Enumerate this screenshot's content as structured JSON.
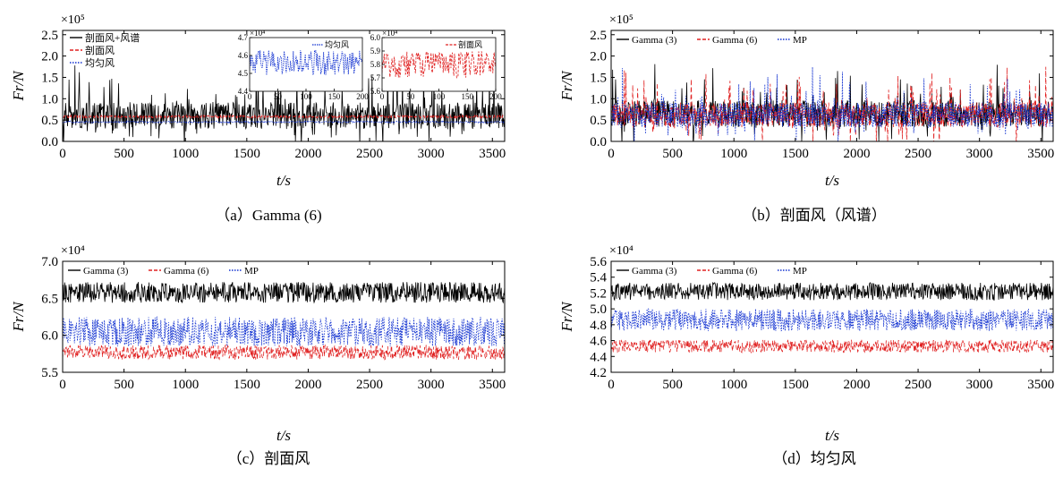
{
  "chart_data": [
    {
      "id": "a",
      "type": "line",
      "caption": "（a）Gamma (6)",
      "xlabel": "t/s",
      "ylabel": "Fr/N",
      "scale_label": "×10⁵",
      "xlim": [
        0,
        3600
      ],
      "ylim": [
        0,
        2.6
      ],
      "xticks": [
        0,
        500,
        1000,
        1500,
        2000,
        2500,
        3000,
        3500
      ],
      "yticks": [
        0,
        0.5,
        1.0,
        1.5,
        2.0,
        2.5
      ],
      "legend": [
        "剖面风+风谱",
        "剖面风",
        "均匀风"
      ],
      "legend_position": "top-left",
      "series": [
        {
          "name": "剖面风+风谱",
          "color": "#000000",
          "style": "solid",
          "mean": 0.6,
          "amplitude": 0.45,
          "noise": "spiky"
        },
        {
          "name": "剖面风",
          "color": "#e02020",
          "style": "dashed",
          "mean": 0.58,
          "amplitude": 0.03,
          "noise": "dense"
        },
        {
          "name": "均匀风",
          "color": "#1030d0",
          "style": "dotted",
          "mean": 0.456,
          "amplitude": 0.02,
          "noise": "dense"
        }
      ],
      "insets": [
        {
          "legend": "均匀风",
          "scale_label": "×10⁴",
          "color": "#1030d0",
          "xlim": [
            0,
            200
          ],
          "ylim": [
            4.4,
            4.7
          ],
          "xticks": [
            0,
            50,
            100,
            150,
            200
          ],
          "yticks": [
            4.4,
            4.5,
            4.6,
            4.7
          ],
          "mean": 4.56,
          "amplitude": 0.07
        },
        {
          "legend": "剖面风",
          "scale_label": "×10⁴",
          "color": "#e02020",
          "xlim": [
            0,
            200
          ],
          "ylim": [
            5.6,
            6.0
          ],
          "xticks": [
            0,
            50,
            100,
            150,
            200
          ],
          "yticks": [
            5.6,
            5.7,
            5.8,
            5.9,
            6.0
          ],
          "mean": 5.8,
          "amplitude": 0.1
        }
      ]
    },
    {
      "id": "b",
      "type": "line",
      "caption": "（b）剖面风（风谱）",
      "xlabel": "t/s",
      "ylabel": "Fr/N",
      "scale_label": "×10⁵",
      "xlim": [
        0,
        3600
      ],
      "ylim": [
        0,
        2.6
      ],
      "xticks": [
        0,
        500,
        1000,
        1500,
        2000,
        2500,
        3000,
        3500
      ],
      "yticks": [
        0,
        0.5,
        1.0,
        1.5,
        2.0,
        2.5
      ],
      "legend": [
        "Gamma (3)",
        "Gamma (6)",
        "MP"
      ],
      "legend_position": "top-left",
      "series": [
        {
          "name": "Gamma (3)",
          "color": "#000000",
          "style": "solid",
          "mean": 0.65,
          "amplitude": 0.45,
          "noise": "spiky"
        },
        {
          "name": "Gamma (6)",
          "color": "#e02020",
          "style": "dashed",
          "mean": 0.62,
          "amplitude": 0.42,
          "noise": "spiky"
        },
        {
          "name": "MP",
          "color": "#1030d0",
          "style": "dotted",
          "mean": 0.62,
          "amplitude": 0.42,
          "noise": "spiky"
        }
      ]
    },
    {
      "id": "c",
      "type": "line",
      "caption": "（c）剖面风",
      "xlabel": "t/s",
      "ylabel": "Fr/N",
      "scale_label": "×10⁴",
      "xlim": [
        0,
        3600
      ],
      "ylim": [
        5.5,
        7.0
      ],
      "xticks": [
        0,
        500,
        1000,
        1500,
        2000,
        2500,
        3000,
        3500
      ],
      "yticks": [
        5.5,
        6.0,
        6.5,
        7.0
      ],
      "legend": [
        "Gamma (3)",
        "Gamma (6)",
        "MP"
      ],
      "legend_position": "top-left",
      "series": [
        {
          "name": "Gamma (3)",
          "color": "#000000",
          "style": "solid",
          "mean": 6.58,
          "amplitude": 0.14,
          "noise": "dense"
        },
        {
          "name": "Gamma (6)",
          "color": "#e02020",
          "style": "dashed",
          "mean": 5.77,
          "amplitude": 0.1,
          "noise": "dense"
        },
        {
          "name": "MP",
          "color": "#1030d0",
          "style": "dotted",
          "mean": 6.05,
          "amplitude": 0.2,
          "noise": "dense"
        }
      ]
    },
    {
      "id": "d",
      "type": "line",
      "caption": "（d）均匀风",
      "xlabel": "t/s",
      "ylabel": "Fr/N",
      "scale_label": "×10⁴",
      "xlim": [
        0,
        3600
      ],
      "ylim": [
        4.2,
        5.6
      ],
      "xticks": [
        0,
        500,
        1000,
        1500,
        2000,
        2500,
        3000,
        3500
      ],
      "yticks": [
        4.2,
        4.4,
        4.6,
        4.8,
        5.0,
        5.2,
        5.4,
        5.6
      ],
      "legend": [
        "Gamma (3)",
        "Gamma (6)",
        "MP"
      ],
      "legend_position": "top-left",
      "series": [
        {
          "name": "Gamma (3)",
          "color": "#000000",
          "style": "solid",
          "mean": 5.22,
          "amplitude": 0.11,
          "noise": "dense"
        },
        {
          "name": "Gamma (6)",
          "color": "#e02020",
          "style": "dashed",
          "mean": 4.53,
          "amplitude": 0.08,
          "noise": "dense"
        },
        {
          "name": "MP",
          "color": "#1030d0",
          "style": "dotted",
          "mean": 4.86,
          "amplitude": 0.14,
          "noise": "dense"
        }
      ]
    }
  ]
}
